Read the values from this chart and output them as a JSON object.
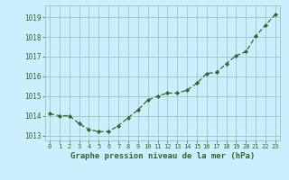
{
  "x": [
    0,
    1,
    2,
    3,
    4,
    5,
    6,
    7,
    8,
    9,
    10,
    11,
    12,
    13,
    14,
    15,
    16,
    17,
    18,
    19,
    20,
    21,
    22,
    23
  ],
  "y": [
    1014.1,
    1014.0,
    1014.0,
    1013.6,
    1013.3,
    1013.2,
    1013.2,
    1013.5,
    1013.9,
    1014.3,
    1014.8,
    1015.0,
    1015.15,
    1015.15,
    1015.3,
    1015.65,
    1016.15,
    1016.2,
    1016.65,
    1017.05,
    1017.25,
    1018.05,
    1018.6,
    1019.15
  ],
  "line_color": "#2d6a2d",
  "marker": "D",
  "marker_size": 2.2,
  "bg_color": "#cceeff",
  "grid_color": "#99ccbb",
  "xlabel": "Graphe pression niveau de la mer (hPa)",
  "xlabel_color": "#2d6a2d",
  "tick_color": "#2d6a2d",
  "xlim": [
    -0.5,
    23.5
  ],
  "ylim": [
    1012.75,
    1019.6
  ],
  "yticks": [
    1013,
    1014,
    1015,
    1016,
    1017,
    1018,
    1019
  ],
  "xticks": [
    0,
    1,
    2,
    3,
    4,
    5,
    6,
    7,
    8,
    9,
    10,
    11,
    12,
    13,
    14,
    15,
    16,
    17,
    18,
    19,
    20,
    21,
    22,
    23
  ]
}
